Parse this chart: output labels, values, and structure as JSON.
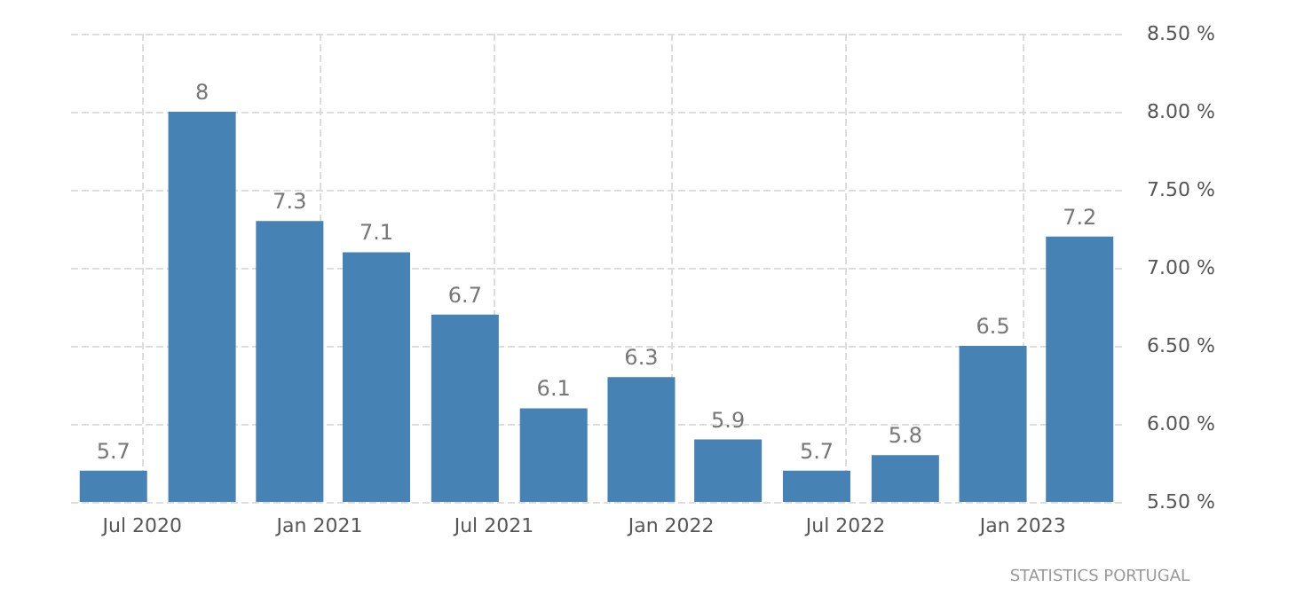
{
  "chart_data": {
    "type": "bar",
    "x": [
      "2020-06",
      "2020-09",
      "2020-12",
      "2021-03",
      "2021-06",
      "2021-09",
      "2021-12",
      "2022-03",
      "2022-06",
      "2022-09",
      "2022-12",
      "2023-03"
    ],
    "values": [
      5.7,
      8,
      7.3,
      7.1,
      6.7,
      6.1,
      6.3,
      5.9,
      5.7,
      5.8,
      6.5,
      7.2
    ],
    "color": "#4682b4",
    "data_labels": true,
    "grid": true,
    "xlim": [
      "2020-04-18",
      "2023-04-14"
    ],
    "xticks": [
      {
        "value": "2020-07",
        "label": "Jul 2020"
      },
      {
        "value": "2021-01",
        "label": "Jan 2021"
      },
      {
        "value": "2021-07",
        "label": "Jul 2021"
      },
      {
        "value": "2022-01",
        "label": "Jan 2022"
      },
      {
        "value": "2022-07",
        "label": "Jul 2022"
      },
      {
        "value": "2023-01",
        "label": "Jan 2023"
      }
    ],
    "ylim": [
      5.5,
      8.5
    ],
    "yticks": [
      {
        "value": 5.5,
        "label": "5.50 %"
      },
      {
        "value": 6,
        "label": "6.00 %"
      },
      {
        "value": 6.5,
        "label": "6.50 %"
      },
      {
        "value": 7,
        "label": "7.00 %"
      },
      {
        "value": 7.5,
        "label": "7.50 %"
      },
      {
        "value": 8,
        "label": "8.00 %"
      },
      {
        "value": 8.5,
        "label": "8.50 %"
      }
    ],
    "annotations": [
      "STATISTICS PORTUGAL"
    ]
  }
}
